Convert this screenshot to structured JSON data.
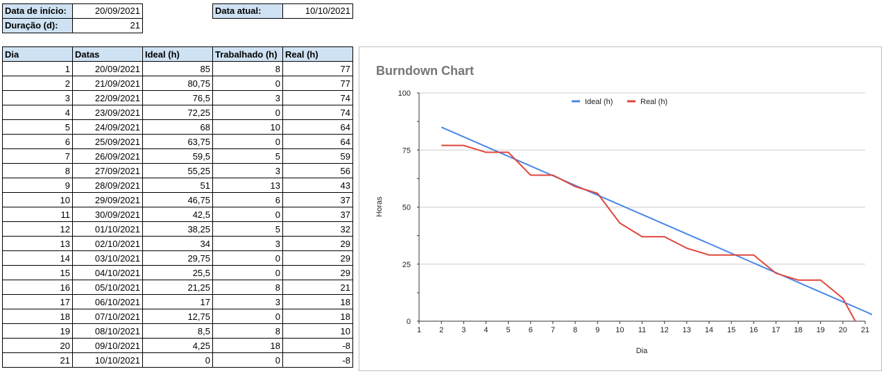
{
  "header": {
    "start_label": "Data de início:",
    "start_value": "20/09/2021",
    "duration_label": "Duração (d):",
    "duration_value": "21",
    "current_label": "Data atual:",
    "current_value": "10/10/2021"
  },
  "table": {
    "columns": [
      "Dia",
      "Datas",
      "Ideal (h)",
      "Trabalhado (h)",
      "Real (h)"
    ],
    "rows": [
      [
        "1",
        "20/09/2021",
        "85",
        "8",
        "77"
      ],
      [
        "2",
        "21/09/2021",
        "80,75",
        "0",
        "77"
      ],
      [
        "3",
        "22/09/2021",
        "76,5",
        "3",
        "74"
      ],
      [
        "4",
        "23/09/2021",
        "72,25",
        "0",
        "74"
      ],
      [
        "5",
        "24/09/2021",
        "68",
        "10",
        "64"
      ],
      [
        "6",
        "25/09/2021",
        "63,75",
        "0",
        "64"
      ],
      [
        "7",
        "26/09/2021",
        "59,5",
        "5",
        "59"
      ],
      [
        "8",
        "27/09/2021",
        "55,25",
        "3",
        "56"
      ],
      [
        "9",
        "28/09/2021",
        "51",
        "13",
        "43"
      ],
      [
        "10",
        "29/09/2021",
        "46,75",
        "6",
        "37"
      ],
      [
        "11",
        "30/09/2021",
        "42,5",
        "0",
        "37"
      ],
      [
        "12",
        "01/10/2021",
        "38,25",
        "5",
        "32"
      ],
      [
        "13",
        "02/10/2021",
        "34",
        "3",
        "29"
      ],
      [
        "14",
        "03/10/2021",
        "29,75",
        "0",
        "29"
      ],
      [
        "15",
        "04/10/2021",
        "25,5",
        "0",
        "29"
      ],
      [
        "16",
        "05/10/2021",
        "21,25",
        "8",
        "21"
      ],
      [
        "17",
        "06/10/2021",
        "17",
        "3",
        "18"
      ],
      [
        "18",
        "07/10/2021",
        "12,75",
        "0",
        "18"
      ],
      [
        "19",
        "08/10/2021",
        "8,5",
        "8",
        "10"
      ],
      [
        "20",
        "09/10/2021",
        "4,25",
        "18",
        "-8"
      ],
      [
        "21",
        "10/10/2021",
        "0",
        "0",
        "-8"
      ]
    ]
  },
  "chart_data": {
    "type": "line",
    "title": "Burndown Chart",
    "xlabel": "Dia",
    "ylabel": "Horas",
    "x": [
      1,
      2,
      3,
      4,
      5,
      6,
      7,
      8,
      9,
      10,
      11,
      12,
      13,
      14,
      15,
      16,
      17,
      18,
      19,
      20,
      21
    ],
    "series": [
      {
        "name": "Ideal (h)",
        "color": "#4a86e8",
        "values": [
          85,
          80.75,
          76.5,
          72.25,
          68,
          63.75,
          59.5,
          55.25,
          51,
          46.75,
          42.5,
          38.25,
          34,
          29.75,
          25.5,
          21.25,
          17,
          12.75,
          8.5,
          4.25,
          0
        ]
      },
      {
        "name": "Real (h)",
        "color": "#e0453a",
        "values": [
          77,
          77,
          74,
          74,
          64,
          64,
          59,
          56,
          43,
          37,
          37,
          32,
          29,
          29,
          29,
          21,
          18,
          18,
          10,
          -8,
          -8
        ]
      }
    ],
    "xlim": [
      1,
      21
    ],
    "ylim": [
      0,
      100
    ],
    "yticks": [
      0,
      25,
      50,
      75,
      100
    ],
    "xticks": [
      1,
      2,
      3,
      4,
      5,
      6,
      7,
      8,
      9,
      10,
      11,
      12,
      13,
      14,
      15,
      16,
      17,
      18,
      19,
      20,
      21
    ],
    "grid": true,
    "legend": "top-center"
  }
}
